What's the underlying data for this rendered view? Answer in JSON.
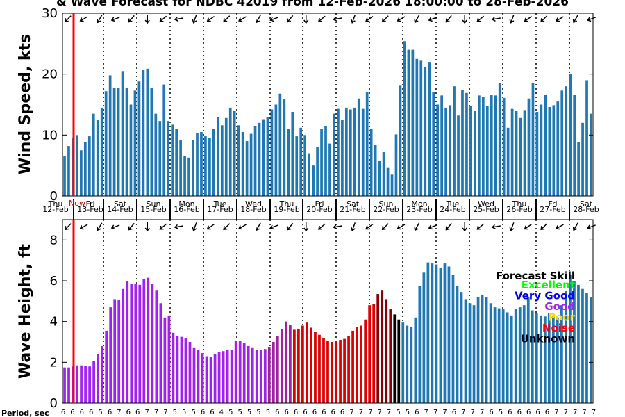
{
  "chart_data": [
    {
      "type": "bar",
      "title": "& Wave Forecast for NDBC 42019 from 12-Feb-2026 18:00:00 to 28-Feb-2026",
      "ylabel": "Wind Speed, kts",
      "ylim": [
        0,
        30
      ],
      "yticks": [
        "0",
        "10",
        "20",
        "30"
      ],
      "days": [
        {
          "dow": "Thu",
          "date": "12-Feb"
        },
        {
          "dow": "Fri",
          "date": "13-Feb"
        },
        {
          "dow": "Sat",
          "date": "14-Feb"
        },
        {
          "dow": "Sun",
          "date": "15-Feb"
        },
        {
          "dow": "Mon",
          "date": "16-Feb"
        },
        {
          "dow": "Tue",
          "date": "17-Feb"
        },
        {
          "dow": "Wed",
          "date": "18-Feb"
        },
        {
          "dow": "Thu",
          "date": "19-Feb"
        },
        {
          "dow": "Fri",
          "date": "20-Feb"
        },
        {
          "dow": "Sat",
          "date": "21-Feb"
        },
        {
          "dow": "Sun",
          "date": "22-Feb"
        },
        {
          "dow": "Mon",
          "date": "23-Feb"
        },
        {
          "dow": "Tue",
          "date": "24-Feb"
        },
        {
          "dow": "Wed",
          "date": "25-Feb"
        },
        {
          "dow": "Thu",
          "date": "26-Feb"
        },
        {
          "dow": "Fri",
          "date": "27-Feb"
        },
        {
          "dow": "Sat",
          "date": "28-Feb"
        }
      ],
      "now_label": "Now",
      "series": [
        {
          "name": "Wind Speed",
          "color": "#1f77b4",
          "values": [
            6.5,
            8.2,
            9.5,
            10.0,
            7.5,
            8.8,
            9.8,
            13.5,
            12.5,
            14.5,
            17.2,
            19.8,
            17.8,
            17.8,
            20.5,
            17.8,
            15.0,
            17.3,
            18.8,
            20.7,
            20.9,
            17.8,
            13.5,
            12.3,
            18.3,
            12.3,
            11.7,
            11.0,
            9.2,
            6.5,
            6.3,
            9.2,
            10.3,
            10.5,
            9.8,
            9.5,
            11.0,
            13.0,
            11.6,
            12.8,
            14.5,
            14.0,
            11.6,
            10.5,
            9.0,
            10.2,
            11.5,
            12.0,
            12.6,
            13.0,
            14.2,
            15.0,
            16.8,
            15.9,
            11.0,
            13.8,
            9.8,
            11.2,
            10.0,
            7.0,
            5.0,
            8.0,
            11.0,
            11.5,
            8.6,
            13.5,
            14.3,
            12.5,
            14.5,
            14.2,
            14.5,
            16.0,
            14.3,
            17.1,
            11.0,
            8.4,
            5.8,
            7.2,
            4.6,
            3.5,
            10.1,
            18.1,
            25.4,
            24.0,
            24.0,
            22.5,
            22.2,
            21.1,
            22.0,
            17.0,
            15.0,
            16.5,
            14.5,
            14.9,
            18.0,
            13.2,
            17.4,
            16.9,
            14.8,
            14.0,
            16.5,
            16.3,
            14.8,
            16.6,
            16.5,
            18.5,
            16.1,
            11.2,
            14.3,
            14.0,
            12.8,
            14.1,
            16.0,
            18.5,
            13.8,
            15.0,
            16.6,
            14.6,
            14.9,
            15.5,
            17.3,
            18.0,
            20.0,
            16.6,
            8.9,
            12.0,
            19.0,
            13.5
          ]
        }
      ]
    },
    {
      "type": "bar",
      "ylabel": "Wave Height, ft",
      "ylim": [
        0,
        9
      ],
      "yticks": [
        "0",
        "2",
        "4",
        "6",
        "8"
      ],
      "period_label": "Period, sec",
      "periods": [
        "6",
        "6",
        "6",
        "6",
        "5",
        "6",
        "7",
        "6",
        "6",
        "7",
        "7",
        "7",
        "5",
        "5",
        "5",
        "6",
        "6",
        "4",
        "5",
        "5",
        "5",
        "5",
        "5",
        "6",
        "6",
        "6",
        "6",
        "6",
        "6",
        "6",
        "6",
        "7",
        "7",
        "7",
        "7",
        "7",
        "5",
        "5",
        "6",
        "7",
        "7",
        "7",
        "6",
        "7",
        "7",
        "7",
        "6",
        "5",
        "6",
        "6",
        "6",
        "6",
        "6",
        "7",
        "7",
        "7",
        "7",
        "7"
      ],
      "series": [
        {
          "name": "Wave Height",
          "values": [
            1.75,
            1.75,
            1.8,
            1.85,
            1.85,
            1.82,
            1.8,
            2.05,
            2.4,
            2.8,
            3.55,
            4.7,
            5.1,
            5.05,
            5.6,
            6.0,
            5.85,
            5.85,
            5.8,
            6.1,
            6.15,
            5.85,
            5.55,
            4.9,
            4.2,
            4.3,
            3.45,
            3.3,
            3.25,
            3.2,
            3.0,
            2.7,
            2.6,
            2.45,
            2.3,
            2.25,
            2.4,
            2.5,
            2.55,
            2.6,
            2.6,
            3.05,
            3.05,
            2.95,
            2.8,
            2.7,
            2.6,
            2.6,
            2.65,
            2.75,
            3.0,
            3.3,
            3.65,
            4.0,
            3.85,
            3.6,
            3.65,
            3.8,
            3.95,
            3.7,
            3.5,
            3.35,
            3.2,
            3.05,
            3.0,
            3.05,
            3.1,
            3.15,
            3.3,
            3.55,
            3.75,
            3.8,
            4.1,
            4.8,
            4.85,
            5.35,
            5.55,
            5.1,
            4.6,
            4.35,
            4.1,
            3.95,
            3.8,
            3.75,
            4.2,
            5.75,
            6.4,
            6.9,
            6.85,
            6.8,
            6.65,
            6.85,
            6.7,
            6.3,
            5.75,
            5.45,
            5.1,
            4.9,
            4.8,
            5.2,
            5.3,
            5.2,
            4.9,
            4.7,
            4.65,
            4.6,
            4.45,
            4.3,
            4.6,
            4.7,
            4.8,
            5.2,
            4.55,
            4.4,
            4.3,
            4.25,
            4.4,
            4.3,
            4.2,
            4.8,
            5.5,
            6.3,
            6.0,
            5.8,
            5.6,
            5.4,
            5.2
          ]
        }
      ],
      "legend": {
        "title": "Forecast Skill",
        "entries": [
          {
            "label": "Excellent",
            "color": "#00ff00"
          },
          {
            "label": "Very Good",
            "color": "#0000ff"
          },
          {
            "label": "Good",
            "color": "#a020f0"
          },
          {
            "label": "Poor",
            "color": "#ffd700"
          },
          {
            "label": "Noise",
            "color": "#ff0000"
          },
          {
            "label": "Unknown",
            "color": "#000000"
          }
        ]
      },
      "skill_colors": {
        "Good": "#a020f0",
        "Mixed": "#a020a0",
        "Noise": "#dd0000",
        "Degrading": "#8b0000",
        "Unknown": "#000000",
        "Default": "#1f77b4"
      }
    }
  ]
}
